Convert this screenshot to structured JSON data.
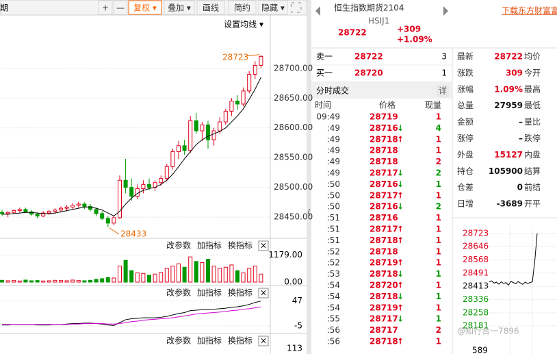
{
  "toolbar": {
    "period": "期",
    "buttons": [
      "+",
      "—",
      "复权 ▾",
      "叠加 ▾",
      "画线",
      "简约",
      "隐藏 ▾"
    ],
    "ma_setting": "设置均线 ▾"
  },
  "price_chart": {
    "ylim": [
      28418,
      28763
    ],
    "yticks": [
      {
        "value": 28700,
        "label": "28700.00"
      },
      {
        "value": 28650,
        "label": "28650.00"
      },
      {
        "value": 28600,
        "label": "28600.00"
      },
      {
        "value": 28550,
        "label": "28550.00"
      },
      {
        "value": 28500,
        "label": "28500.00"
      },
      {
        "value": 28450,
        "label": "28450.00"
      }
    ],
    "high_label": 28723,
    "low_label": 28433,
    "candles": [
      [
        28458,
        28462,
        28452,
        28456
      ],
      [
        28456,
        28460,
        28450,
        28458
      ],
      [
        28458,
        28463,
        28455,
        28461
      ],
      [
        28461,
        28466,
        28458,
        28463
      ],
      [
        28463,
        28466,
        28457,
        28459
      ],
      [
        28459,
        28462,
        28452,
        28455
      ],
      [
        28455,
        28458,
        28448,
        28452
      ],
      [
        28452,
        28460,
        28450,
        28457
      ],
      [
        28457,
        28462,
        28454,
        28460
      ],
      [
        28460,
        28465,
        28456,
        28462
      ],
      [
        28462,
        28468,
        28458,
        28465
      ],
      [
        28465,
        28470,
        28460,
        28467
      ],
      [
        28467,
        28474,
        28463,
        28470
      ],
      [
        28470,
        28476,
        28466,
        28472
      ],
      [
        28472,
        28475,
        28464,
        28468
      ],
      [
        28468,
        28472,
        28460,
        28463
      ],
      [
        28463,
        28466,
        28452,
        28456
      ],
      [
        28456,
        28460,
        28445,
        28448
      ],
      [
        28448,
        28452,
        28433,
        28440
      ],
      [
        28440,
        28452,
        28436,
        28449
      ],
      [
        28449,
        28520,
        28447,
        28512
      ],
      [
        28512,
        28548,
        28490,
        28500
      ],
      [
        28500,
        28515,
        28478,
        28485
      ],
      [
        28485,
        28505,
        28480,
        28498
      ],
      [
        28498,
        28512,
        28490,
        28505
      ],
      [
        28505,
        28515,
        28495,
        28500
      ],
      [
        28500,
        28512,
        28494,
        28508
      ],
      [
        28508,
        28520,
        28502,
        28515
      ],
      [
        28515,
        28540,
        28510,
        28535
      ],
      [
        28535,
        28565,
        28530,
        28560
      ],
      [
        28560,
        28578,
        28548,
        28570
      ],
      [
        28570,
        28580,
        28555,
        28562
      ],
      [
        28562,
        28620,
        28558,
        28612
      ],
      [
        28612,
        28625,
        28590,
        28595
      ],
      [
        28595,
        28610,
        28578,
        28605
      ],
      [
        28605,
        28612,
        28565,
        28580
      ],
      [
        28580,
        28600,
        28570,
        28595
      ],
      [
        28595,
        28618,
        28590,
        28610
      ],
      [
        28610,
        28632,
        28605,
        28628
      ],
      [
        28628,
        28650,
        28620,
        28645
      ],
      [
        28645,
        28655,
        28630,
        28640
      ],
      [
        28640,
        28668,
        28636,
        28662
      ],
      [
        28662,
        28695,
        28658,
        28690
      ],
      [
        28690,
        28712,
        28682,
        28705
      ],
      [
        28705,
        28723,
        28700,
        28720
      ]
    ],
    "ma": [
      28455,
      28455,
      28456,
      28457,
      28458,
      28458,
      28457,
      28456,
      28456,
      28457,
      28459,
      28461,
      28463,
      28465,
      28467,
      28467,
      28465,
      28462,
      28457,
      28452,
      28460,
      28472,
      28482,
      28490,
      28495,
      28498,
      28500,
      28505,
      28512,
      28522,
      28535,
      28548,
      28560,
      28572,
      28580,
      28586,
      28590,
      28594,
      28600,
      28610,
      28620,
      28632,
      28648,
      28665,
      28685
    ]
  },
  "panels": [
    {
      "buttons": [
        "改参数",
        "加指标",
        "换指标"
      ],
      "close": "×",
      "ylim": [
        0,
        1314
      ],
      "yticks": [
        {
          "value": 1179,
          "label": "1179.00"
        },
        {
          "value": 0,
          "label": "0.00"
        }
      ],
      "volume": [
        80,
        60,
        70,
        50,
        90,
        60,
        70,
        50,
        60,
        80,
        70,
        60,
        90,
        70,
        60,
        80,
        120,
        150,
        200,
        180,
        700,
        950,
        500,
        400,
        380,
        300,
        350,
        420,
        600,
        700,
        800,
        650,
        1100,
        900,
        850,
        1000,
        700,
        600,
        650,
        750,
        500,
        400,
        600,
        700,
        350
      ]
    },
    {
      "buttons": [
        "改参数",
        "加指标",
        "换指标"
      ],
      "close": "×",
      "ylim": [
        -15,
        58
      ],
      "yticks": [
        47,
        -5
      ],
      "dif": [
        -3,
        -3,
        -2,
        -2,
        -2,
        -2,
        -3,
        -3,
        -3,
        -2,
        -2,
        -1,
        0,
        0,
        1,
        1,
        0,
        -1,
        -3,
        -4,
        2,
        8,
        10,
        11,
        12,
        12,
        12,
        13,
        15,
        18,
        21,
        23,
        27,
        28,
        29,
        29,
        30,
        31,
        32,
        34,
        35,
        37,
        40,
        44,
        47
      ],
      "dea": [
        -2,
        -2,
        -2,
        -2,
        -2,
        -2,
        -2,
        -2,
        -2,
        -2,
        -2,
        -2,
        -1,
        -1,
        0,
        0,
        0,
        0,
        -1,
        -1,
        0,
        2,
        4,
        5,
        7,
        8,
        9,
        10,
        11,
        12,
        14,
        16,
        18,
        20,
        21,
        22,
        23,
        24,
        25,
        27,
        28,
        30,
        31,
        33,
        35
      ]
    },
    {
      "buttons": [
        "改参数",
        "加指标",
        "换指标"
      ],
      "close": "×",
      "tick_label": 113
    }
  ],
  "quote": {
    "name": "恒生指数期货2104",
    "code": "HSIJ1",
    "price": 28722,
    "change": "+309",
    "change_pct": "+1.09%"
  },
  "link": "下载东方财富富",
  "order_book": [
    {
      "label": "卖一",
      "price": 28722,
      "qty": 3
    },
    {
      "label": "买一",
      "price": 28720,
      "qty": 1
    }
  ],
  "trades_title": "分时成交",
  "trades_detail": "详",
  "trades_columns": [
    "时间",
    "价格",
    "现量"
  ],
  "trades": [
    {
      "time": "09:49",
      "price": 28719,
      "qty": 1
    },
    {
      "time": ":49",
      "price": 28716,
      "dir": "↓",
      "qty": 4
    },
    {
      "time": ":49",
      "price": 28718,
      "dir": "↑",
      "qty": 1
    },
    {
      "time": ":49",
      "price": 28718,
      "qty": 1
    },
    {
      "time": ":49",
      "price": 28718,
      "qty": 2
    },
    {
      "time": ":49",
      "price": 28717,
      "dir": "↓",
      "qty": 2
    },
    {
      "time": ":50",
      "price": 28716,
      "dir": "↓",
      "qty": 1
    },
    {
      "time": ":50",
      "price": 28717,
      "dir": "↑",
      "qty": 1
    },
    {
      "time": ":50",
      "price": 28716,
      "dir": "↓",
      "qty": 2
    },
    {
      "time": ":51",
      "price": 28716,
      "qty": 1
    },
    {
      "time": ":51",
      "price": 28717,
      "dir": "↑",
      "qty": 1
    },
    {
      "time": ":51",
      "price": 28718,
      "dir": "↑",
      "qty": 1
    },
    {
      "time": ":52",
      "price": 28718,
      "qty": 1
    },
    {
      "time": ":52",
      "price": 28719,
      "dir": "↑",
      "qty": 1
    },
    {
      "time": ":53",
      "price": 28718,
      "dir": "↓",
      "qty": 1
    },
    {
      "time": ":54",
      "price": 28720,
      "dir": "↑",
      "qty": 1
    },
    {
      "time": ":54",
      "price": 28718,
      "dir": "↓",
      "qty": 1
    },
    {
      "time": ":54",
      "price": 28719,
      "dir": "↑",
      "qty": 1
    },
    {
      "time": ":55",
      "price": 28717,
      "dir": "↓",
      "qty": 1
    },
    {
      "time": ":56",
      "price": 28717,
      "qty": 2
    },
    {
      "time": ":56",
      "price": 28718,
      "dir": "↑",
      "qty": 1
    }
  ],
  "stats": [
    {
      "label": "最新",
      "value": 28722,
      "label2": "均价"
    },
    {
      "label": "涨跌",
      "value": 309,
      "label2": "今开"
    },
    {
      "label": "涨幅",
      "value": "1.09%",
      "label2": "最高"
    },
    {
      "label": "总量",
      "value": 27959,
      "label2": "最低"
    },
    {
      "label": "金额",
      "value": "–",
      "label2": "量比"
    },
    {
      "label": "涨停",
      "value": "–",
      "label2": "跌停"
    },
    {
      "label": "外盘",
      "value": 15127,
      "label2": "内盘"
    },
    {
      "label": "持仓",
      "value": 105900,
      "label2": "结算"
    },
    {
      "label": "仓差",
      "value": 0,
      "label2": "前结"
    },
    {
      "label": "日增",
      "value": -3689,
      "label2": "开平"
    }
  ],
  "mini_chart": {
    "ylim": [
      28165,
      28735
    ],
    "yticks": [
      28723,
      28646,
      28568,
      28491,
      28413,
      28336,
      28258,
      28181
    ],
    "volume_label": 589,
    "prices": [
      28440,
      28445,
      28432,
      28438,
      28425,
      28440,
      28430,
      28435,
      28420,
      28442,
      28436,
      28428,
      28441,
      28433,
      28425,
      28438,
      28430,
      28435,
      28440,
      28560,
      28723
    ]
  },
  "watermark": "@知行合一7896"
}
